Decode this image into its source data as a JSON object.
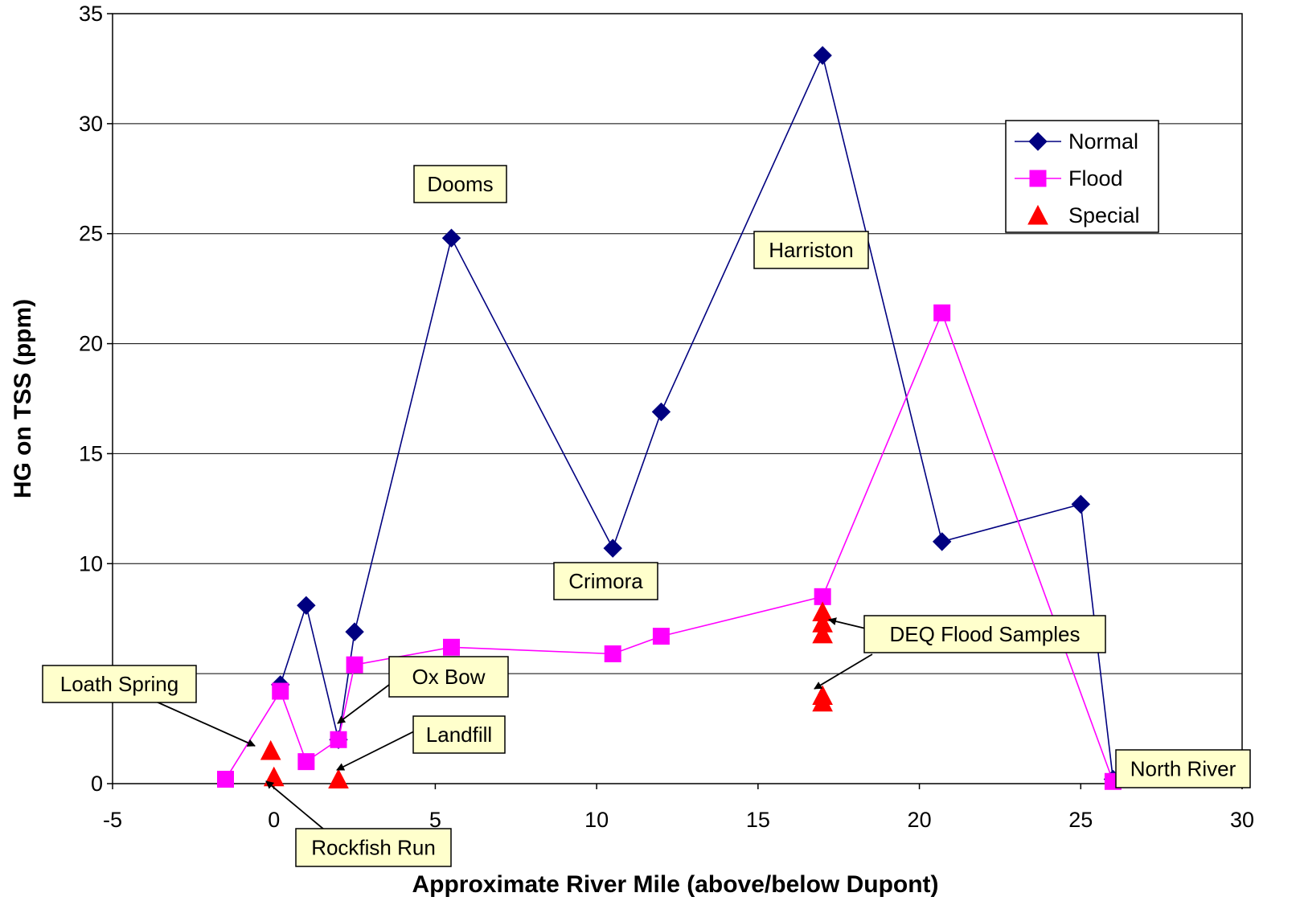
{
  "chart_data": {
    "type": "scatter",
    "title": "",
    "xlabel": "Approximate River Mile (above/below Dupont)",
    "ylabel": "HG on TSS (ppm)",
    "xlim": [
      -5,
      30
    ],
    "ylim": [
      0,
      35
    ],
    "x_ticks": [
      "-5",
      "0",
      "5",
      "10",
      "15",
      "20",
      "25",
      "30"
    ],
    "y_ticks": [
      "0",
      "5",
      "10",
      "15",
      "20",
      "25",
      "30",
      "35"
    ],
    "grid": "horizontal",
    "legend_position": "top-right",
    "series": [
      {
        "name": "Normal",
        "color": "#000080",
        "marker": "diamond",
        "points": [
          [
            0.2,
            4.5
          ],
          [
            1.0,
            8.1
          ],
          [
            2.0,
            2.0
          ],
          [
            2.5,
            6.9
          ],
          [
            5.5,
            24.8
          ],
          [
            10.5,
            10.7
          ],
          [
            12.0,
            16.9
          ],
          [
            17.0,
            33.1
          ],
          [
            20.7,
            11.0
          ],
          [
            25.0,
            12.7
          ],
          [
            26.0,
            0.2
          ]
        ]
      },
      {
        "name": "Flood",
        "color": "#ff00ff",
        "marker": "square",
        "points": [
          [
            -1.5,
            0.2
          ],
          [
            0.2,
            4.2
          ],
          [
            1.0,
            1.0
          ],
          [
            2.0,
            2.0
          ],
          [
            2.5,
            5.4
          ],
          [
            5.5,
            6.2
          ],
          [
            10.5,
            5.9
          ],
          [
            12.0,
            6.7
          ],
          [
            17.0,
            8.5
          ],
          [
            20.7,
            21.4
          ],
          [
            26.0,
            0.1
          ]
        ]
      },
      {
        "name": "Special",
        "color": "#ff0000",
        "marker": "triangle",
        "points": [
          [
            -0.1,
            1.5
          ],
          [
            0.0,
            0.3
          ],
          [
            2.0,
            0.2
          ],
          [
            17.0,
            7.8
          ],
          [
            17.0,
            7.3
          ],
          [
            17.0,
            6.8
          ],
          [
            17.0,
            4.0
          ],
          [
            17.0,
            3.7
          ]
        ]
      }
    ],
    "annotations": [
      {
        "label": "Dooms"
      },
      {
        "label": "Harriston"
      },
      {
        "label": "Crimora"
      },
      {
        "label": "DEQ Flood Samples"
      },
      {
        "label": "Ox Bow"
      },
      {
        "label": "Loath Spring"
      },
      {
        "label": "Landfill"
      },
      {
        "label": "Rockfish Run"
      },
      {
        "label": "North River"
      }
    ]
  }
}
